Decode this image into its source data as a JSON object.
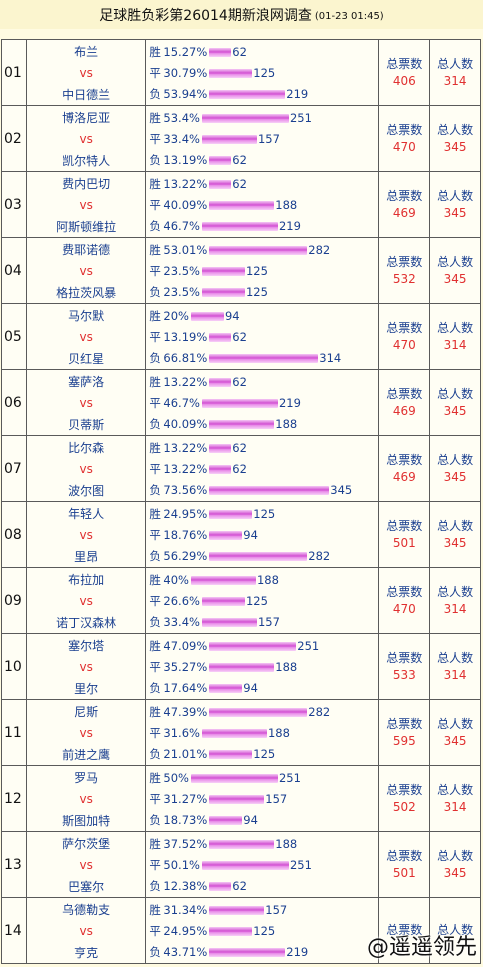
{
  "header": {
    "title": "足球胜负彩第26014期新浪网调查",
    "timestamp": "(01-23 01:45)"
  },
  "stat_labels": {
    "votes": "总票数",
    "people": "总人数"
  },
  "matches": [
    {
      "no": "01",
      "home": "布兰",
      "vs": "vs",
      "away": "中日德兰",
      "odds": [
        {
          "label": "胜",
          "pct": "15.27%",
          "count": 62
        },
        {
          "label": "平",
          "pct": "30.79%",
          "count": 125
        },
        {
          "label": "负",
          "pct": "53.94%",
          "count": 219
        }
      ],
      "votes": "406",
      "people": "314"
    },
    {
      "no": "02",
      "home": "博洛尼亚",
      "vs": "vs",
      "away": "凯尔特人",
      "odds": [
        {
          "label": "胜",
          "pct": "53.4%",
          "count": 251
        },
        {
          "label": "平",
          "pct": "33.4%",
          "count": 157
        },
        {
          "label": "负",
          "pct": "13.19%",
          "count": 62
        }
      ],
      "votes": "470",
      "people": "345"
    },
    {
      "no": "03",
      "home": "费内巴切",
      "vs": "vs",
      "away": "阿斯顿维拉",
      "odds": [
        {
          "label": "胜",
          "pct": "13.22%",
          "count": 62
        },
        {
          "label": "平",
          "pct": "40.09%",
          "count": 188
        },
        {
          "label": "负",
          "pct": "46.7%",
          "count": 219
        }
      ],
      "votes": "469",
      "people": "345"
    },
    {
      "no": "04",
      "home": "费耶诺德",
      "vs": "vs",
      "away": "格拉茨风暴",
      "odds": [
        {
          "label": "胜",
          "pct": "53.01%",
          "count": 282
        },
        {
          "label": "平",
          "pct": "23.5%",
          "count": 125
        },
        {
          "label": "负",
          "pct": "23.5%",
          "count": 125
        }
      ],
      "votes": "532",
      "people": "345"
    },
    {
      "no": "05",
      "home": "马尔默",
      "vs": "vs",
      "away": "贝红星",
      "odds": [
        {
          "label": "胜",
          "pct": "20%",
          "count": 94
        },
        {
          "label": "平",
          "pct": "13.19%",
          "count": 62
        },
        {
          "label": "负",
          "pct": "66.81%",
          "count": 314
        }
      ],
      "votes": "470",
      "people": "314"
    },
    {
      "no": "06",
      "home": "塞萨洛",
      "vs": "vs",
      "away": "贝蒂斯",
      "odds": [
        {
          "label": "胜",
          "pct": "13.22%",
          "count": 62
        },
        {
          "label": "平",
          "pct": "46.7%",
          "count": 219
        },
        {
          "label": "负",
          "pct": "40.09%",
          "count": 188
        }
      ],
      "votes": "469",
      "people": "345"
    },
    {
      "no": "07",
      "home": "比尔森",
      "vs": "vs",
      "away": "波尔图",
      "odds": [
        {
          "label": "胜",
          "pct": "13.22%",
          "count": 62
        },
        {
          "label": "平",
          "pct": "13.22%",
          "count": 62
        },
        {
          "label": "负",
          "pct": "73.56%",
          "count": 345
        }
      ],
      "votes": "469",
      "people": "345"
    },
    {
      "no": "08",
      "home": "年轻人",
      "vs": "vs",
      "away": "里昂",
      "odds": [
        {
          "label": "胜",
          "pct": "24.95%",
          "count": 125
        },
        {
          "label": "平",
          "pct": "18.76%",
          "count": 94
        },
        {
          "label": "负",
          "pct": "56.29%",
          "count": 282
        }
      ],
      "votes": "501",
      "people": "345"
    },
    {
      "no": "09",
      "home": "布拉加",
      "vs": "vs",
      "away": "诺丁汉森林",
      "odds": [
        {
          "label": "胜",
          "pct": "40%",
          "count": 188
        },
        {
          "label": "平",
          "pct": "26.6%",
          "count": 125
        },
        {
          "label": "负",
          "pct": "33.4%",
          "count": 157
        }
      ],
      "votes": "470",
      "people": "314"
    },
    {
      "no": "10",
      "home": "塞尔塔",
      "vs": "vs",
      "away": "里尔",
      "odds": [
        {
          "label": "胜",
          "pct": "47.09%",
          "count": 251
        },
        {
          "label": "平",
          "pct": "35.27%",
          "count": 188
        },
        {
          "label": "负",
          "pct": "17.64%",
          "count": 94
        }
      ],
      "votes": "533",
      "people": "314"
    },
    {
      "no": "11",
      "home": "尼斯",
      "vs": "vs",
      "away": "前进之鹰",
      "odds": [
        {
          "label": "胜",
          "pct": "47.39%",
          "count": 282
        },
        {
          "label": "平",
          "pct": "31.6%",
          "count": 188
        },
        {
          "label": "负",
          "pct": "21.01%",
          "count": 125
        }
      ],
      "votes": "595",
      "people": "345"
    },
    {
      "no": "12",
      "home": "罗马",
      "vs": "vs",
      "away": "斯图加特",
      "odds": [
        {
          "label": "胜",
          "pct": "50%",
          "count": 251
        },
        {
          "label": "平",
          "pct": "31.27%",
          "count": 157
        },
        {
          "label": "负",
          "pct": "18.73%",
          "count": 94
        }
      ],
      "votes": "502",
      "people": "314"
    },
    {
      "no": "13",
      "home": "萨尔茨堡",
      "vs": "vs",
      "away": "巴塞尔",
      "odds": [
        {
          "label": "胜",
          "pct": "37.52%",
          "count": 188
        },
        {
          "label": "平",
          "pct": "50.1%",
          "count": 251
        },
        {
          "label": "负",
          "pct": "12.38%",
          "count": 62
        }
      ],
      "votes": "501",
      "people": "345"
    },
    {
      "no": "14",
      "home": "乌德勒支",
      "vs": "vs",
      "away": "亨克",
      "odds": [
        {
          "label": "胜",
          "pct": "31.34%",
          "count": 157
        },
        {
          "label": "平",
          "pct": "24.95%",
          "count": 125
        },
        {
          "label": "负",
          "pct": "43.71%",
          "count": 219
        }
      ],
      "votes": "",
      "people": ""
    }
  ],
  "watermark": "@遥遥领先"
}
